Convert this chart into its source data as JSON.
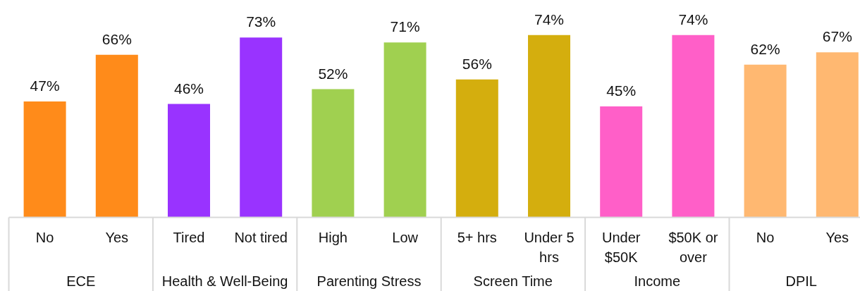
{
  "chart_data": {
    "type": "bar",
    "categories": [
      "No",
      "Yes",
      "Tired",
      "Not tired",
      "High",
      "Low",
      "5+ hrs",
      "Under 5 hrs",
      "Under $50K",
      "$50K or over",
      "No",
      "Yes"
    ],
    "values": [
      47,
      66,
      46,
      73,
      52,
      71,
      56,
      74,
      45,
      74,
      62,
      67
    ],
    "value_labels": [
      "47%",
      "66%",
      "46%",
      "73%",
      "52%",
      "71%",
      "56%",
      "74%",
      "45%",
      "74%",
      "62%",
      "67%"
    ],
    "colors": [
      "#ff8b1a",
      "#ff8b1a",
      "#9933ff",
      "#9933ff",
      "#a0d050",
      "#a0d050",
      "#d4ae0e",
      "#d4ae0e",
      "#ff5fc8",
      "#ff5fc8",
      "#ffb871",
      "#ffb871"
    ],
    "annotations": [
      "ECE",
      "Health & Well-Being",
      "Parenting Stress",
      "Screen Time",
      "Income",
      "DPIL"
    ]
  }
}
